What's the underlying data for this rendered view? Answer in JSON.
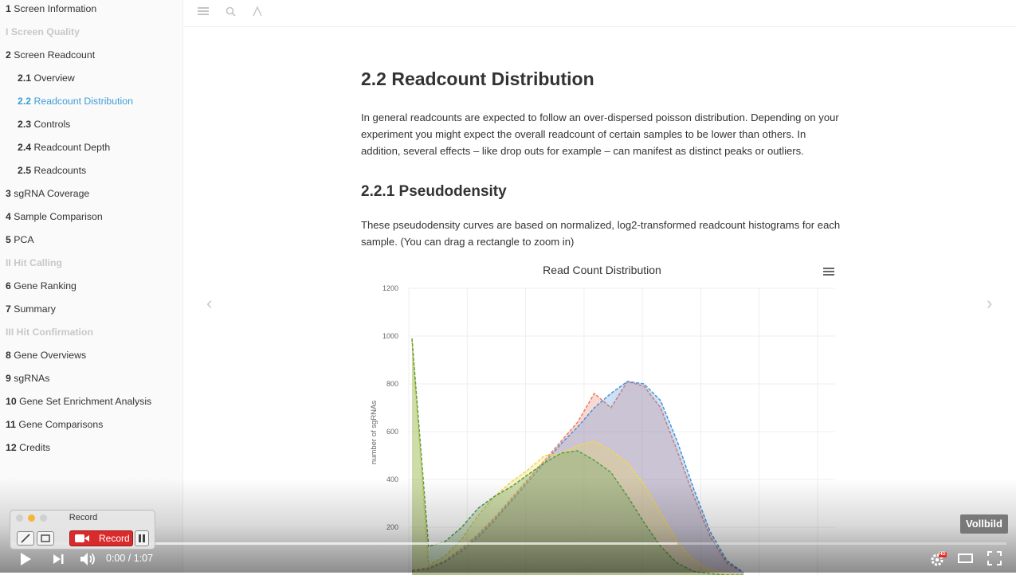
{
  "sidebar": {
    "items": [
      {
        "num": "1",
        "label": "Screen Information",
        "kind": "lvl1"
      },
      {
        "num": "",
        "label": "I Screen Quality",
        "kind": "part"
      },
      {
        "num": "2",
        "label": "Screen Readcount",
        "kind": "lvl1"
      },
      {
        "num": "2.1",
        "label": "Overview",
        "kind": "lvl2"
      },
      {
        "num": "2.2",
        "label": "Readcount Distribution",
        "kind": "lvl2 active"
      },
      {
        "num": "2.3",
        "label": "Controls",
        "kind": "lvl2"
      },
      {
        "num": "2.4",
        "label": "Readcount Depth",
        "kind": "lvl2"
      },
      {
        "num": "2.5",
        "label": "Readcounts",
        "kind": "lvl2"
      },
      {
        "num": "3",
        "label": "sgRNA Coverage",
        "kind": "lvl1"
      },
      {
        "num": "4",
        "label": "Sample Comparison",
        "kind": "lvl1"
      },
      {
        "num": "5",
        "label": "PCA",
        "kind": "lvl1"
      },
      {
        "num": "",
        "label": "II Hit Calling",
        "kind": "part"
      },
      {
        "num": "6",
        "label": "Gene Ranking",
        "kind": "lvl1"
      },
      {
        "num": "7",
        "label": "Summary",
        "kind": "lvl1"
      },
      {
        "num": "",
        "label": "III Hit Confirmation",
        "kind": "part"
      },
      {
        "num": "8",
        "label": "Gene Overviews",
        "kind": "lvl1"
      },
      {
        "num": "9",
        "label": "sgRNAs",
        "kind": "lvl1"
      },
      {
        "num": "10",
        "label": "Gene Set Enrichment Analysis",
        "kind": "lvl1"
      },
      {
        "num": "11",
        "label": "Gene Comparisons",
        "kind": "lvl1"
      },
      {
        "num": "12",
        "label": "Credits",
        "kind": "lvl1"
      }
    ]
  },
  "toolbar": {
    "icons": [
      "menu-icon",
      "search-icon",
      "font-icon"
    ]
  },
  "main": {
    "heading": "2.2 Readcount Distribution",
    "intro": "In general readcounts are expected to follow an over-dispersed poisson distribution. Depending on your experiment you might expect the overall readcount of certain samples to be lower than others. In addition, several effects – like drop outs for example – can manifest as distinct peaks or outliers.",
    "subheading": "2.2.1 Pseudodensity",
    "sub_text": "These pseudodensity curves are based on normalized, log2-transformed readcount histograms for each sample. (You can drag a rectangle to zoom in)"
  },
  "chart_data": {
    "type": "area",
    "title": "Read Count Distribution",
    "ylabel": "number of sgRNAs",
    "xlabel": "",
    "ylim": [
      0,
      1200
    ],
    "yticks": [
      200,
      400,
      600,
      800,
      1000,
      1200
    ],
    "grid": true,
    "series": [
      {
        "color": "#f07860",
        "x": [
          0,
          1,
          2,
          3,
          4,
          5,
          6,
          7,
          8,
          9,
          10,
          11,
          12,
          13,
          14,
          15,
          16,
          17,
          18,
          19,
          20
        ],
        "values": [
          20,
          30,
          60,
          110,
          170,
          240,
          320,
          400,
          480,
          560,
          640,
          760,
          700,
          810,
          790,
          700,
          520,
          330,
          160,
          50,
          10
        ]
      },
      {
        "color": "#4a90d9",
        "x": [
          0,
          1,
          2,
          3,
          4,
          5,
          6,
          7,
          8,
          9,
          10,
          11,
          12,
          13,
          14,
          15,
          16,
          17,
          18,
          19,
          20
        ],
        "values": [
          15,
          25,
          55,
          100,
          160,
          230,
          310,
          390,
          470,
          550,
          620,
          700,
          760,
          810,
          800,
          730,
          560,
          360,
          180,
          60,
          10
        ]
      },
      {
        "color": "#f2d84a",
        "x": [
          0,
          1,
          2,
          3,
          4,
          5,
          6,
          7,
          8,
          9,
          10,
          11,
          12,
          13,
          14,
          15,
          16,
          17,
          18,
          19,
          20
        ],
        "values": [
          980,
          40,
          80,
          150,
          250,
          330,
          390,
          440,
          500,
          510,
          540,
          560,
          520,
          470,
          380,
          260,
          140,
          60,
          20,
          5,
          0
        ]
      },
      {
        "color": "#5a9e4a",
        "x": [
          0,
          1,
          2,
          3,
          4,
          5,
          6,
          7,
          8,
          9,
          10,
          11,
          12,
          13,
          14,
          15,
          16,
          17,
          18,
          19,
          20
        ],
        "values": [
          990,
          120,
          140,
          200,
          280,
          330,
          370,
          420,
          470,
          510,
          520,
          480,
          430,
          330,
          220,
          120,
          50,
          15,
          5,
          0,
          0
        ]
      }
    ]
  },
  "nav": {
    "prev_arrow": "‹",
    "next_arrow": "›"
  },
  "video": {
    "time": "0:00 / 1:07",
    "progress_fraction": 0.0,
    "buffer_fraction": 0.67,
    "fullscreen_tooltip": "Vollbild",
    "hd_badge": "HD"
  },
  "recorder": {
    "title": "Record",
    "record_label": "Record"
  },
  "colors": {
    "accent": "#3e9dd6",
    "record_red": "#d92b2b",
    "progress_red": "#e52d27"
  }
}
